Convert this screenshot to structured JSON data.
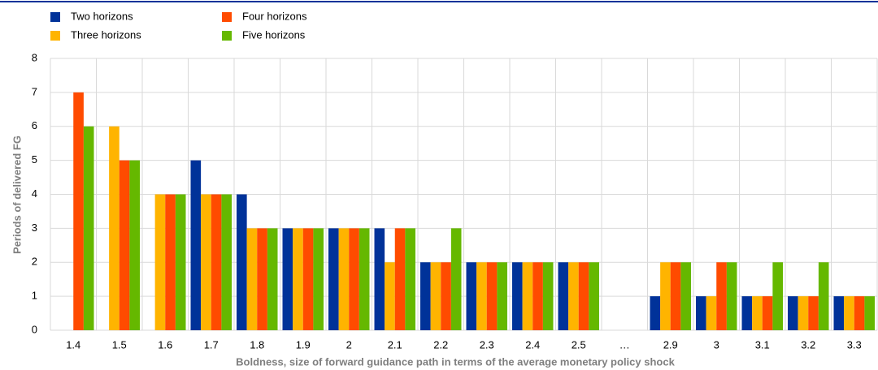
{
  "chart_data": {
    "type": "bar",
    "y_label": "Periods of delivered FG",
    "x_label": "Boldness, size of forward guidance path in terms of the average monetary policy shock",
    "categories": [
      "1.4",
      "1.5",
      "1.6",
      "1.7",
      "1.8",
      "1.9",
      "2",
      "2.1",
      "2.2",
      "2.3",
      "2.4",
      "2.5",
      "…",
      "2.9",
      "3",
      "3.1",
      "3.2",
      "3.3"
    ],
    "series": [
      {
        "name": "Two horizons",
        "color": "#003299",
        "values": [
          0,
          0,
          0,
          5,
          4,
          3,
          3,
          3,
          2,
          2,
          2,
          2,
          null,
          1,
          1,
          1,
          1,
          1
        ]
      },
      {
        "name": "Three horizons",
        "color": "#ffb400",
        "values": [
          0,
          6,
          4,
          4,
          3,
          3,
          3,
          2,
          2,
          2,
          2,
          2,
          null,
          2,
          1,
          1,
          1,
          1
        ]
      },
      {
        "name": "Four horizons",
        "color": "#ff4b00",
        "values": [
          7,
          5,
          4,
          4,
          3,
          3,
          3,
          3,
          2,
          2,
          2,
          2,
          null,
          2,
          2,
          1,
          1,
          1
        ]
      },
      {
        "name": "Five horizons",
        "color": "#65b800",
        "values": [
          6,
          5,
          4,
          4,
          3,
          3,
          3,
          3,
          3,
          2,
          2,
          2,
          null,
          2,
          2,
          2,
          2,
          1
        ]
      }
    ],
    "ylim": [
      0,
      8
    ],
    "yticks": [
      0,
      1,
      2,
      3,
      4,
      5,
      6,
      7,
      8
    ],
    "grid": true
  }
}
